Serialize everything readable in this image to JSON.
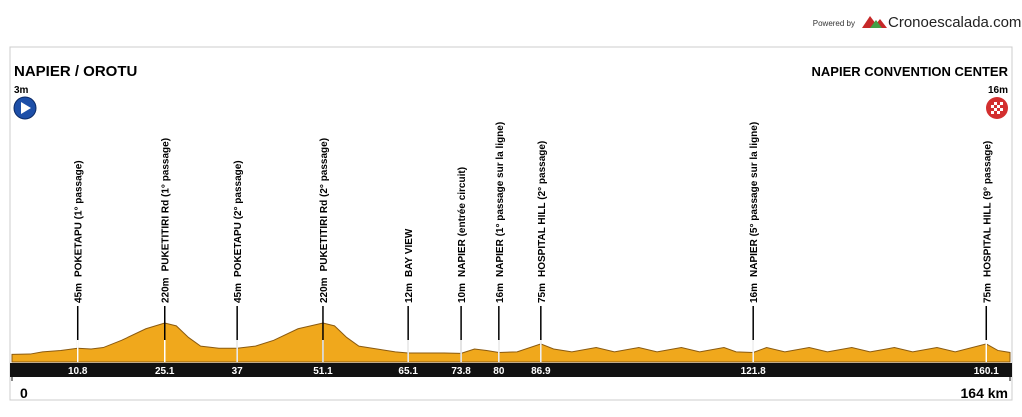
{
  "chart_data": {
    "type": "area",
    "powered_by": "Powered by",
    "brand": "Cronoescalada.com",
    "start": {
      "name": "NAPIER / OROTU",
      "altitude_label": "3m"
    },
    "finish": {
      "name": "NAPIER CONVENTION CENTER",
      "altitude_label": "16m"
    },
    "xlim": [
      0,
      164
    ],
    "ylim": [
      -50,
      220
    ],
    "xticks": [
      0,
      {
        "value": 164,
        "label": "164 km"
      }
    ],
    "color": "#f0a81c",
    "profile": {
      "km": [
        0,
        3,
        5,
        8,
        10.8,
        13,
        15,
        18,
        22,
        25.1,
        27,
        29,
        31,
        34,
        37,
        40,
        43,
        47,
        51.1,
        53,
        55,
        57,
        60,
        63,
        65.1,
        68,
        71,
        73.8,
        76,
        78,
        80,
        83,
        86.9,
        89,
        92,
        96,
        99,
        103,
        106,
        110,
        113,
        117,
        119,
        121.8,
        124,
        127,
        131,
        134,
        138,
        141,
        145,
        148,
        152,
        155,
        160.1,
        162,
        164
      ],
      "altitude": [
        3,
        5,
        20,
        30,
        45,
        40,
        50,
        100,
        180,
        220,
        200,
        120,
        60,
        45,
        45,
        60,
        100,
        180,
        220,
        200,
        120,
        60,
        40,
        20,
        12,
        12,
        12,
        10,
        40,
        30,
        16,
        20,
        75,
        40,
        20,
        50,
        20,
        50,
        20,
        50,
        20,
        50,
        20,
        16,
        50,
        20,
        50,
        20,
        50,
        20,
        50,
        20,
        50,
        20,
        75,
        30,
        16
      ]
    },
    "waypoints": [
      {
        "km": 10.8,
        "altitude_label": "45m",
        "name": "POKETAPU (1° passage)"
      },
      {
        "km": 25.1,
        "altitude_label": "220m",
        "name": "PUKETITIRI Rd (1° passage)"
      },
      {
        "km": 37,
        "altitude_label": "45m",
        "name": "POKETAPU (2° passage)"
      },
      {
        "km": 51.1,
        "altitude_label": "220m",
        "name": "PUKETITIRI Rd (2° passage)"
      },
      {
        "km": 65.1,
        "altitude_label": "12m",
        "name": "BAY VIEW"
      },
      {
        "km": 73.8,
        "altitude_label": "10m",
        "name": "NAPIER (entrée circuit)"
      },
      {
        "km": 80,
        "altitude_label": "16m",
        "name": "NAPIER (1° passage sur la ligne)"
      },
      {
        "km": 86.9,
        "altitude_label": "75m",
        "name": "HOSPITAL HILL (2° passage)"
      },
      {
        "km": 121.8,
        "altitude_label": "16m",
        "name": "NAPIER (5° passage sur la ligne)"
      },
      {
        "km": 160.1,
        "altitude_label": "75m",
        "name": "HOSPITAL HILL (9° passage)"
      }
    ]
  }
}
